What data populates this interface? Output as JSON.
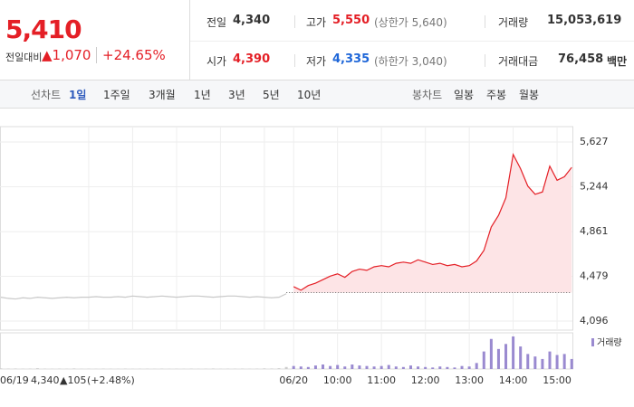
{
  "header": {
    "price": "5,410",
    "change_label": "전일대비",
    "change": "▲1,070",
    "change_rate": "+24.65%",
    "stats": [
      {
        "label": "전일",
        "value": "4,340"
      },
      {
        "label": "고가",
        "value": "5,550",
        "note": "(상한가 5,640)"
      },
      {
        "label": "거래량",
        "value": "15,053,619"
      },
      {
        "label": "시가",
        "value": "4,390"
      },
      {
        "label": "저가",
        "value": "4,335",
        "note": "(하한가 3,040)"
      },
      {
        "label": "거래대금",
        "value": "76,458",
        "unit": "백만"
      }
    ]
  },
  "tabs": {
    "line_label": "선차트",
    "line_tabs": [
      "1일",
      "1주일",
      "3개월",
      "1년",
      "3년",
      "5년",
      "10년"
    ],
    "candle_label": "봉차트",
    "candle_tabs": [
      "일봉",
      "주봉",
      "월봉"
    ]
  },
  "footer": {
    "close": "4,340",
    "change": "▲105",
    "rate": "(+2.48%)"
  },
  "chart_data": {
    "type": "line",
    "categories": [
      "06/19",
      null,
      null,
      null,
      null,
      null,
      null,
      null,
      null,
      null,
      null,
      null,
      null,
      null,
      null,
      null,
      null,
      null,
      null,
      null,
      null,
      null,
      null,
      null,
      null,
      null,
      null,
      null,
      null,
      null,
      null,
      null,
      null,
      null,
      null,
      null,
      null,
      null,
      null,
      null,
      "06/20",
      null,
      null,
      null,
      null,
      null,
      "10:00",
      null,
      null,
      null,
      null,
      null,
      "11:00",
      null,
      null,
      null,
      null,
      null,
      "12:00",
      null,
      null,
      null,
      null,
      null,
      "13:00",
      null,
      null,
      null,
      null,
      null,
      "14:00",
      null,
      null,
      null,
      null,
      null,
      "15:00",
      null,
      null,
      null
    ],
    "series": [
      {
        "color": "#c8c8c8",
        "values": [
          4300,
          4290,
          4285,
          4295,
          4290,
          4300,
          4295,
          4290,
          4295,
          4300,
          4295,
          4300,
          4300,
          4305,
          4300,
          4300,
          4305,
          4300,
          4310,
          4305,
          4300,
          4305,
          4310,
          4305,
          4300,
          4305,
          4310,
          4310,
          4305,
          4300,
          4305,
          4310,
          4310,
          4305,
          4300,
          4305,
          4300,
          4295,
          4300,
          4330,
          null,
          null,
          null,
          null,
          null,
          null,
          null,
          null,
          null,
          null,
          null,
          null,
          null,
          null,
          null,
          null,
          null,
          null,
          null,
          null,
          null,
          null,
          null,
          null,
          null,
          null,
          null,
          null,
          null,
          null,
          null,
          null,
          null,
          null,
          null,
          null,
          null,
          null,
          null,
          null
        ]
      },
      {
        "color": "#e41f26",
        "values": [
          null,
          null,
          null,
          null,
          null,
          null,
          null,
          null,
          null,
          null,
          null,
          null,
          null,
          null,
          null,
          null,
          null,
          null,
          null,
          null,
          null,
          null,
          null,
          null,
          null,
          null,
          null,
          null,
          null,
          null,
          null,
          null,
          null,
          null,
          null,
          null,
          null,
          null,
          null,
          null,
          4390,
          4360,
          4400,
          4420,
          4450,
          4480,
          4500,
          4470,
          4520,
          4540,
          4530,
          4560,
          4570,
          4560,
          4590,
          4600,
          4590,
          4620,
          4600,
          4580,
          4590,
          4570,
          4580,
          4560,
          4570,
          4610,
          4700,
          4900,
          5000,
          5150,
          5520,
          5400,
          5250,
          5180,
          5200,
          5420,
          5300,
          5330,
          5410,
          null
        ]
      },
      {
        "name": "거래량",
        "axis": "volume",
        "color": "#9a8ad0",
        "values": [
          12000,
          8000,
          10000,
          6000,
          9000,
          15000,
          7000,
          5000,
          8000,
          6000,
          11000,
          5000,
          7000,
          4000,
          9000,
          6000,
          5000,
          8000,
          4000,
          6000,
          7000,
          5000,
          9000,
          4000,
          6000,
          5000,
          8000,
          4000,
          6000,
          10000,
          5000,
          7000,
          6000,
          9000,
          5000,
          8000,
          12000,
          10000,
          15000,
          40000,
          60000,
          50000,
          40000,
          70000,
          90000,
          60000,
          80000,
          50000,
          90000,
          70000,
          60000,
          50000,
          60000,
          80000,
          50000,
          40000,
          70000,
          50000,
          40000,
          30000,
          50000,
          40000,
          30000,
          60000,
          50000,
          120000,
          350000,
          600000,
          400000,
          500000,
          650000,
          450000,
          300000,
          250000,
          200000,
          350000,
          280000,
          300000,
          200000,
          null
        ]
      }
    ],
    "prev_close": 4340,
    "ylim": [
      4096,
      5627
    ],
    "yticks": [
      {
        "value": 4096,
        "label": "4,096"
      },
      {
        "value": 4479,
        "label": "4,479"
      },
      {
        "value": 4861,
        "label": "4,861"
      },
      {
        "value": 5244,
        "label": "5,244"
      },
      {
        "value": 5627,
        "label": "5,627"
      }
    ],
    "grid": true,
    "area_color": "#fde4e6"
  }
}
